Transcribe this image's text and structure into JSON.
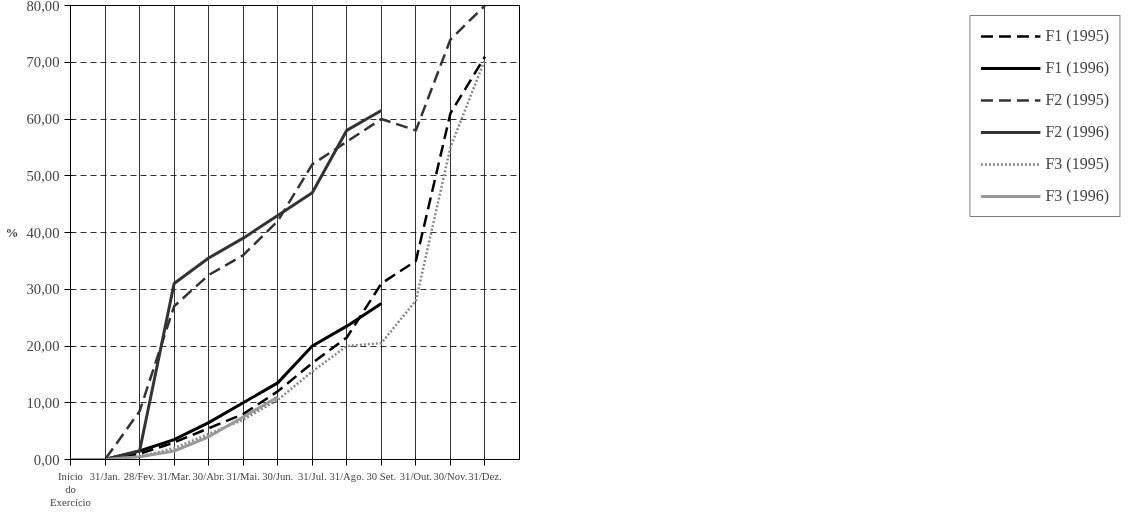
{
  "chart_data": {
    "type": "line",
    "ylabel": "%",
    "categories": [
      "Início do Exercício",
      "31/Jan.",
      "28/Fev.",
      "31/Mar.",
      "30/Abr.",
      "31/Mai.",
      "30/Jun.",
      "31/Jul.",
      "31/Ago.",
      "30 Set.",
      "31/Out.",
      "30/Nov.",
      "31/Dez."
    ],
    "series": [
      {
        "name": "F1 (1995)",
        "color": "#000000",
        "line_style": "dashed",
        "values": [
          0,
          0,
          1,
          3,
          5.5,
          8,
          12,
          17,
          21.5,
          31,
          35,
          61,
          71
        ]
      },
      {
        "name": "F1 (1996)",
        "color": "#000000",
        "line_style": "solid",
        "values": [
          0,
          0,
          1.5,
          3.5,
          6.5,
          10,
          13.5,
          20,
          23.5,
          27.5,
          null,
          null,
          null
        ]
      },
      {
        "name": "F2 (1995)",
        "color": "#333333",
        "line_style": "dashed",
        "values": [
          0,
          0,
          8.5,
          27,
          32.5,
          36,
          42,
          52,
          56,
          60,
          58,
          74,
          80
        ]
      },
      {
        "name": "F2 (1996)",
        "color": "#333333",
        "line_style": "solid",
        "values": [
          0,
          0,
          1.5,
          31,
          35.5,
          39,
          43,
          47,
          58,
          61.5,
          null,
          null,
          null
        ]
      },
      {
        "name": "F3 (1995)",
        "color": "#888888",
        "line_style": "dotted",
        "values": [
          0,
          0,
          0.5,
          2,
          4.5,
          7,
          10.5,
          15.5,
          20,
          20.5,
          28,
          55,
          70.5
        ]
      },
      {
        "name": "F3 (1996)",
        "color": "#999999",
        "line_style": "solid",
        "values": [
          0,
          0,
          0.5,
          1.5,
          4,
          7.5,
          11,
          null,
          null,
          null,
          null,
          null,
          null
        ]
      }
    ],
    "ylim": [
      0,
      80
    ],
    "yticks": [
      {
        "value": 0,
        "label": "0,00"
      },
      {
        "value": 10,
        "label": "10,00"
      },
      {
        "value": 20,
        "label": "20,00"
      },
      {
        "value": 30,
        "label": "30,00"
      },
      {
        "value": 40,
        "label": "40,00"
      },
      {
        "value": 50,
        "label": "50,00"
      },
      {
        "value": 60,
        "label": "60,00"
      },
      {
        "value": 70,
        "label": "70,00"
      },
      {
        "value": 80,
        "label": "80,00"
      }
    ],
    "grid": true,
    "legend": "right",
    "marker": "none"
  }
}
